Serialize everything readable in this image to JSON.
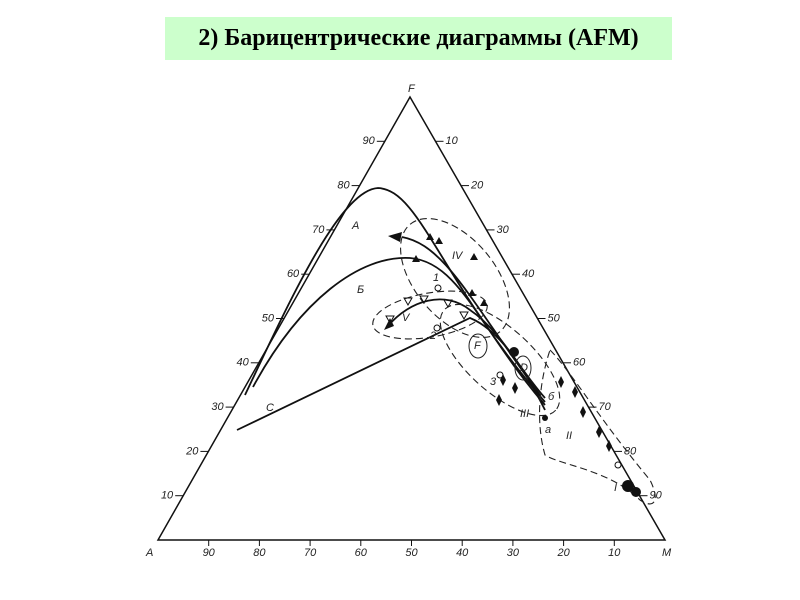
{
  "title": "2) Барицентрические диаграммы (AFM)",
  "vertices": {
    "top": "F",
    "left": "A",
    "right": "M"
  },
  "left_ticks": [
    90,
    80,
    70,
    60,
    50,
    40,
    30,
    20,
    10
  ],
  "right_ticks": [
    10,
    20,
    30,
    40,
    50,
    60,
    70,
    80,
    90
  ],
  "bottom_ticks": [
    90,
    80,
    70,
    60,
    50,
    40,
    30,
    20,
    10
  ],
  "curve_labels": [
    "A",
    "Б",
    "C"
  ],
  "field_labels": [
    "IV",
    "V",
    "III",
    "II",
    "I"
  ],
  "point_labels": [
    "1",
    "2",
    "3",
    "F",
    "D",
    "б",
    "a"
  ]
}
